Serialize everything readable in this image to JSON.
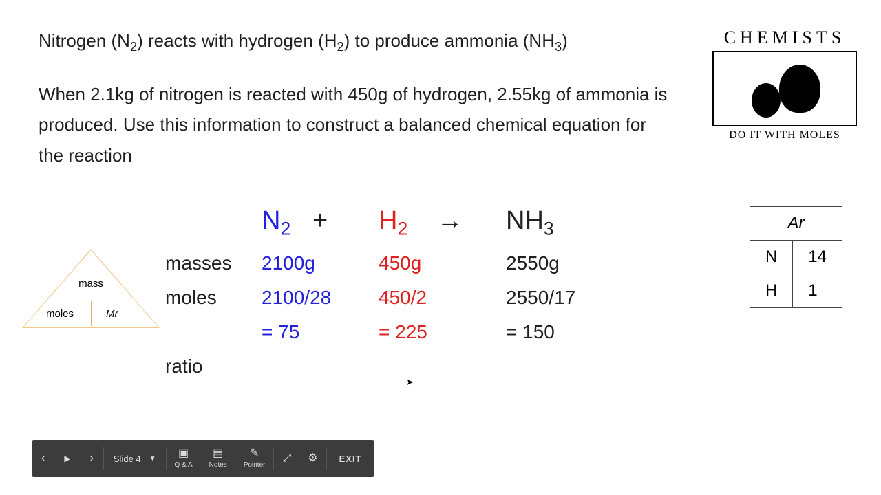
{
  "intro": {
    "pre_n2": "Nitrogen (N",
    "n2_sub": "2",
    "mid1": ") reacts with hydrogen (H",
    "h2_sub": "2",
    "mid2": ") to produce ammonia (NH",
    "nh3_sub": "3",
    "end": ")"
  },
  "problem": "When 2.1kg of nitrogen is reacted with 450g of hydrogen, 2.55kg of ammonia is produced. Use this information to construct a balanced chemical equation for the reaction",
  "logo": {
    "title": "CHEMISTS",
    "subtitle": "DO IT WITH MOLES"
  },
  "triangle": {
    "top": "mass",
    "bottom_left": "moles",
    "bottom_right": "Mr"
  },
  "equation": {
    "colors": {
      "n2": "#2222dd",
      "h2": "#dd2222",
      "nh3": "#202020"
    },
    "n2": "N",
    "n2_sub": "2",
    "plus": "+",
    "h2": "H",
    "h2_sub": "2",
    "arrow": "→",
    "nh3": "NH",
    "nh3_sub": "3"
  },
  "rows": {
    "masses_label": "masses",
    "moles_label": "moles",
    "ratio_label": "ratio",
    "n2_mass": "2100g",
    "h2_mass": "450g",
    "nh3_mass": "2550g",
    "n2_calc": "2100/28",
    "h2_calc": "450/2",
    "nh3_calc": "2550/17",
    "n2_result": "= 75",
    "h2_result": "= 225",
    "nh3_result": "= 150"
  },
  "ar_table": {
    "header": "Ar",
    "rows": [
      {
        "el": "N",
        "val": "14"
      },
      {
        "el": "H",
        "val": "1"
      }
    ]
  },
  "toolbar": {
    "prev": "‹",
    "play": "▶",
    "next": "›",
    "slide_label": "Slide 4",
    "qa_label": "Q & A",
    "notes_label": "Notes",
    "pointer_label": "Pointer",
    "exit": "EXIT"
  }
}
